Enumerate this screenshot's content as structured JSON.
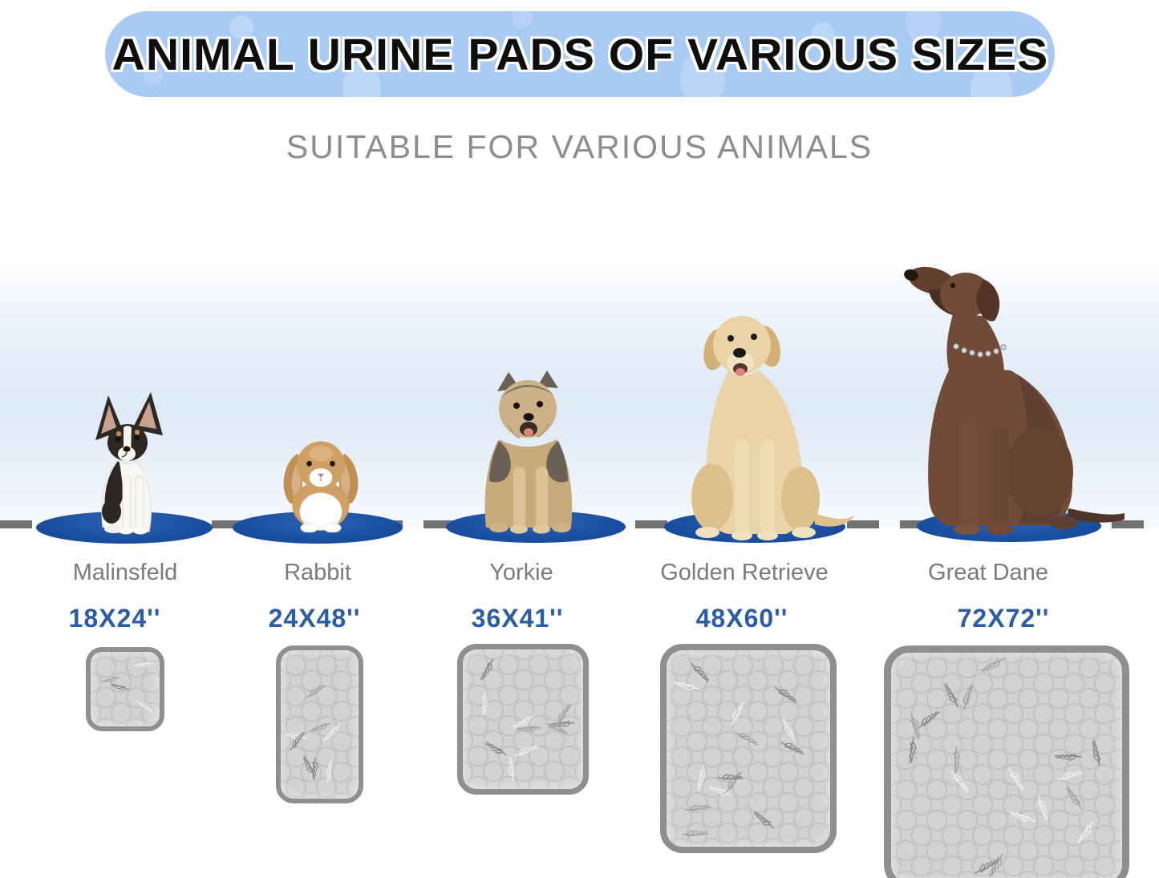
{
  "header": {
    "title": "ANIMAL URINE PADS OF VARIOUS SIZES",
    "subtitle": "SUITABLE FOR VARIOUS ANIMALS"
  },
  "columns": [
    {
      "animal": "Malinsfeld",
      "size": "18X24''"
    },
    {
      "animal": "Rabbit",
      "size": "24X48''"
    },
    {
      "animal": "Yorkie",
      "size": "36X41''"
    },
    {
      "animal": "Golden Retrieve",
      "size": "48X60''"
    },
    {
      "animal": "Great Dane",
      "size": "72X72''"
    }
  ],
  "colors": {
    "banner_background": "#a9cbf3",
    "banner_paw_prints": "#bcd6f7",
    "banner_title_text": "#0e0e0e",
    "subtitle_text": "#8d8d8d",
    "sky_band": "#dde9f6",
    "oval_blue": "#174b9c",
    "dashed_line": "#717171",
    "animal_name_text": "#7b7b7b",
    "size_text_blue": "#2a5ca8",
    "pad_fill": "#d2d2d2",
    "pad_border": "#8f8f8f"
  }
}
